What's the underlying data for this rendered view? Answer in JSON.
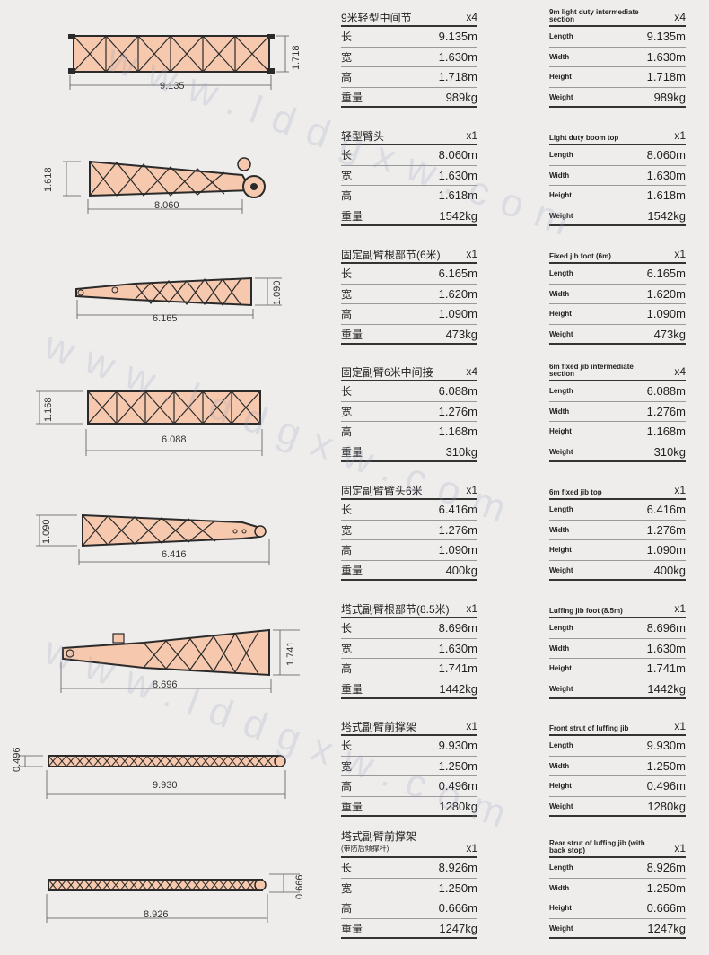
{
  "sections": [
    {
      "cn": {
        "title": "9米轻型中间节",
        "sub": "",
        "qty": "x4",
        "labels": [
          "长",
          "宽",
          "高",
          "重量"
        ]
      },
      "en": {
        "title": "9m light duty intermediate section",
        "qty": "x4",
        "labels": [
          "Length",
          "Width",
          "Height",
          "Weight"
        ]
      },
      "values": [
        "9.135m",
        "1.630m",
        "1.718m",
        "989kg"
      ],
      "dims": {
        "length": "9.135",
        "side": "1.718"
      }
    },
    {
      "cn": {
        "title": "轻型臂头",
        "sub": "",
        "qty": "x1",
        "labels": [
          "长",
          "宽",
          "高",
          "重量"
        ]
      },
      "en": {
        "title": "Light duty boom top",
        "qty": "x1",
        "labels": [
          "Length",
          "Width",
          "Height",
          "Weight"
        ]
      },
      "values": [
        "8.060m",
        "1.630m",
        "1.618m",
        "1542kg"
      ],
      "dims": {
        "length": "8.060",
        "side": "1.618"
      }
    },
    {
      "cn": {
        "title": "固定副臂根部节(6米)",
        "sub": "",
        "qty": "x1",
        "labels": [
          "长",
          "宽",
          "高",
          "重量"
        ]
      },
      "en": {
        "title": "Fixed jib foot (6m)",
        "qty": "x1",
        "labels": [
          "Length",
          "Width",
          "Height",
          "Weight"
        ]
      },
      "values": [
        "6.165m",
        "1.620m",
        "1.090m",
        "473kg"
      ],
      "dims": {
        "length": "6.165",
        "side": "1.090"
      }
    },
    {
      "cn": {
        "title": "固定副臂6米中间接",
        "sub": "",
        "qty": "x4",
        "labels": [
          "长",
          "宽",
          "高",
          "重量"
        ]
      },
      "en": {
        "title": "6m fixed jib intermediate section",
        "qty": "x4",
        "labels": [
          "Length",
          "Width",
          "Height",
          "Weight"
        ]
      },
      "values": [
        "6.088m",
        "1.276m",
        "1.168m",
        "310kg"
      ],
      "dims": {
        "length": "6.088",
        "side": "1.168"
      }
    },
    {
      "cn": {
        "title": "固定副臂臂头6米",
        "sub": "",
        "qty": "x1",
        "labels": [
          "长",
          "宽",
          "高",
          "重量"
        ]
      },
      "en": {
        "title": "6m fixed jib top",
        "qty": "x1",
        "labels": [
          "Length",
          "Width",
          "Height",
          "Weight"
        ]
      },
      "values": [
        "6.416m",
        "1.276m",
        "1.090m",
        "400kg"
      ],
      "dims": {
        "length": "6.416",
        "side": "1.090"
      }
    },
    {
      "cn": {
        "title": "塔式副臂根部节(8.5米)",
        "sub": "",
        "qty": "x1",
        "labels": [
          "长",
          "宽",
          "高",
          "重量"
        ]
      },
      "en": {
        "title": "Luffing jib foot (8.5m)",
        "qty": "x1",
        "labels": [
          "Length",
          "Width",
          "Height",
          "Weight"
        ]
      },
      "values": [
        "8.696m",
        "1.630m",
        "1.741m",
        "1442kg"
      ],
      "dims": {
        "length": "8.696",
        "side": "1.741"
      }
    },
    {
      "cn": {
        "title": "塔式副臂前撑架",
        "sub": "",
        "qty": "x1",
        "labels": [
          "长",
          "宽",
          "高",
          "重量"
        ]
      },
      "en": {
        "title": "Front strut of luffing jib",
        "qty": "x1",
        "labels": [
          "Length",
          "Width",
          "Height",
          "Weight"
        ]
      },
      "values": [
        "9.930m",
        "1.250m",
        "0.496m",
        "1280kg"
      ],
      "dims": {
        "length": "9.930",
        "side": "0.496"
      }
    },
    {
      "cn": {
        "title": "塔式副臂前撑架",
        "sub": "(带防后倾撑杆)",
        "qty": "x1",
        "labels": [
          "长",
          "宽",
          "高",
          "重量"
        ]
      },
      "en": {
        "title": "Rear strut of luffing jib (with back stop)",
        "qty": "x1",
        "labels": [
          "Length",
          "Width",
          "Height",
          "Weight"
        ]
      },
      "values": [
        "8.926m",
        "1.250m",
        "0.666m",
        "1247kg"
      ],
      "dims": {
        "length": "8.926",
        "side": "0.666"
      }
    }
  ],
  "watermark": "www.lddgxw.com",
  "colors": {
    "truss_fill": "#f6c8ad",
    "truss_stroke": "#2a2a2a",
    "background": "#efedec",
    "rule": "#333333"
  }
}
